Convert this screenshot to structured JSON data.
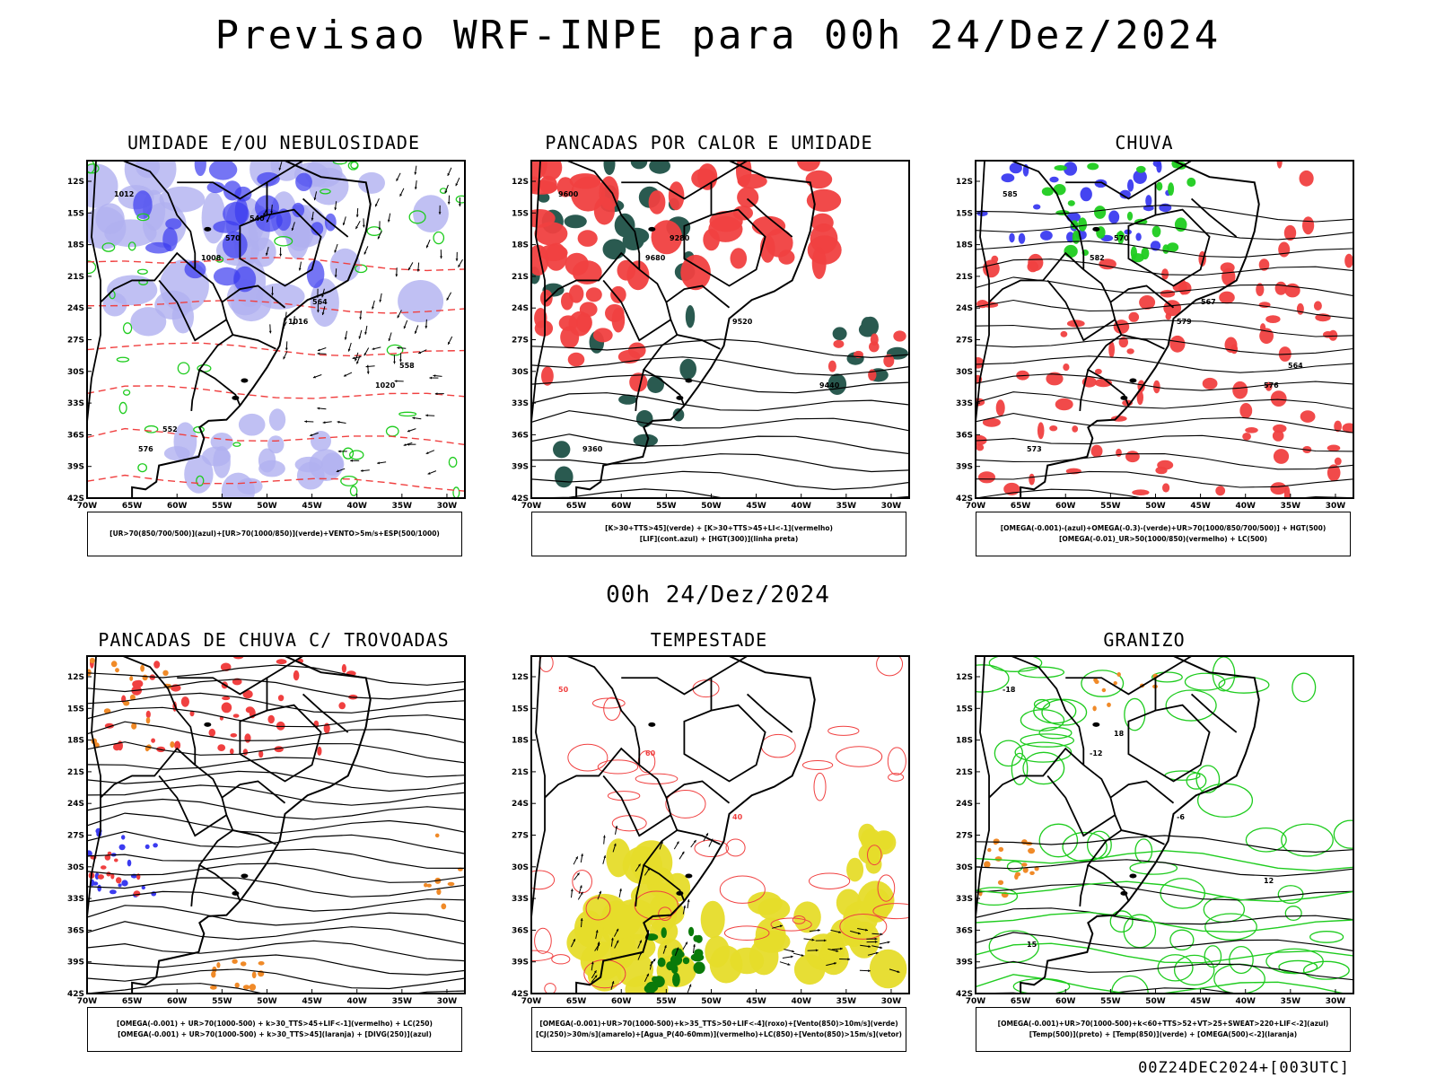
{
  "page_title": "Previsao WRF-INPE  para 00h 24/Dez/2024",
  "middle_title": "00h 24/Dez/2024",
  "footer": "00Z24DEC2024+[003UTC]",
  "colors": {
    "blue": "#3b3bf0",
    "light_blue": "#b0b0f0",
    "green": "#1fcc1f",
    "red": "#f04040",
    "dark_teal": "#2a5a50",
    "orange": "#f08a28",
    "yellow": "#e6dc2a",
    "dark_green": "#0a7a0a"
  },
  "chart_data": [
    {
      "type": "map",
      "title": "UMIDADE E/OU NEBULOSIDADE",
      "x_ticks": [
        "70W",
        "65W",
        "60W",
        "55W",
        "50W",
        "45W",
        "40W",
        "35W",
        "30W"
      ],
      "y_ticks": [
        "12S",
        "15S",
        "18S",
        "21S",
        "24S",
        "27S",
        "30S",
        "33S",
        "36S",
        "39S",
        "42S"
      ],
      "legend": [
        "[UR>70(850/700/500)](azul)+[UR>70(1000/850)](verde)+VENTO>5m/s+ESP(500/1000)"
      ],
      "contour_labels": [
        "1012",
        "1008",
        "1016",
        "1020",
        "576",
        "570",
        "564",
        "558",
        "552",
        "540"
      ]
    },
    {
      "type": "map",
      "title": "PANCADAS POR CALOR E UMIDADE",
      "x_ticks": [
        "70W",
        "65W",
        "60W",
        "55W",
        "50W",
        "45W",
        "40W",
        "35W",
        "30W"
      ],
      "y_ticks": [
        "12S",
        "15S",
        "18S",
        "21S",
        "24S",
        "27S",
        "30S",
        "33S",
        "36S",
        "39S",
        "42S"
      ],
      "legend": [
        "[K>30+TTS>45](verde) + [K>30+TTS>45+LI<-1](vermelho)",
        "[LIF](cont.azul) + [HGT(300)](linha preta)"
      ],
      "contour_labels": [
        "9600",
        "9680",
        "9520",
        "9440",
        "9360",
        "9280"
      ]
    },
    {
      "type": "map",
      "title": "CHUVA",
      "x_ticks": [
        "70W",
        "65W",
        "60W",
        "55W",
        "50W",
        "45W",
        "40W",
        "35W",
        "30W"
      ],
      "y_ticks": [
        "12S",
        "15S",
        "18S",
        "21S",
        "24S",
        "27S",
        "30S",
        "33S",
        "36S",
        "39S",
        "42S"
      ],
      "legend": [
        "[OMEGA(-0.001)-(azul)+OMEGA(-0.3)-(verde)+UR>70(1000/850/700/500)] + HGT(500)",
        "[OMEGA(-0.01)_UR>50(1000/850)(vermelho) + LC(500)"
      ],
      "contour_labels": [
        "585",
        "582",
        "579",
        "576",
        "573",
        "570",
        "567",
        "564"
      ]
    },
    {
      "type": "map",
      "title": "PANCADAS DE CHUVA C/ TROVOADAS",
      "x_ticks": [
        "70W",
        "65W",
        "60W",
        "55W",
        "50W",
        "45W",
        "40W",
        "35W",
        "30W"
      ],
      "y_ticks": [
        "12S",
        "15S",
        "18S",
        "21S",
        "24S",
        "27S",
        "30S",
        "33S",
        "36S",
        "39S",
        "42S"
      ],
      "legend": [
        "[OMEGA(-0.001) + UR>70(1000-500) + k>30_TTS>45+LIF<-1](vermelho) + LC(250)",
        "[OMEGA(-0.001) + UR>70(1000-500) + k>30_TTS>45](laranja) + [DIVG(250)](azul)"
      ],
      "contour_labels": []
    },
    {
      "type": "map",
      "title": "TEMPESTADE",
      "x_ticks": [
        "70W",
        "65W",
        "60W",
        "55W",
        "50W",
        "45W",
        "40W",
        "35W",
        "30W"
      ],
      "y_ticks": [
        "12S",
        "15S",
        "18S",
        "21S",
        "24S",
        "27S",
        "30S",
        "33S",
        "36S",
        "39S",
        "42S"
      ],
      "legend": [
        "[OMEGA(-0.001)+UR>70(1000-500)+k>35_TTS>50+LIF<-4](roxo)+[Vento(850)>10m/s](verde)",
        "[CJ(250)>30m/s](amarelo)+[Agua_P(40-60mm)](vermelho)+LC(850)+[Vento(850)>15m/s](vetor)"
      ],
      "contour_labels": [
        "50",
        "60",
        "40"
      ]
    },
    {
      "type": "map",
      "title": "GRANIZO",
      "x_ticks": [
        "70W",
        "65W",
        "60W",
        "55W",
        "50W",
        "45W",
        "40W",
        "35W",
        "30W"
      ],
      "y_ticks": [
        "12S",
        "15S",
        "18S",
        "21S",
        "24S",
        "27S",
        "30S",
        "33S",
        "36S",
        "39S",
        "42S"
      ],
      "legend": [
        "[OMEGA(-0.001)+UR>70(1000-500)+k<60+TTS>52+VT>25+SWEAT>220+LIF<-2](azul)",
        "[Temp(500)](preto) + [Temp(850)](verde) + [OMEGA(500)<-2](laranja)"
      ],
      "contour_labels": [
        "-18",
        "-12",
        "-6",
        "12",
        "15",
        "18"
      ]
    }
  ]
}
